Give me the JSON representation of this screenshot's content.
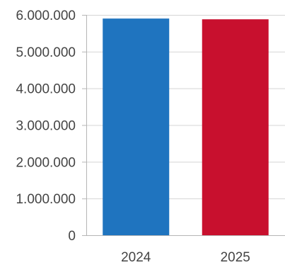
{
  "chart_data": {
    "type": "bar",
    "categories": [
      "2024",
      "2025"
    ],
    "values": [
      5900000,
      5880000
    ],
    "ylim": [
      0,
      6000000
    ],
    "yticks": [
      0,
      1000000,
      2000000,
      3000000,
      4000000,
      5000000,
      6000000
    ],
    "ytick_labels": [
      "0",
      "1.000.000",
      "2.000.000",
      "3.000.000",
      "4.000.000",
      "5.000.000",
      "6.000.000"
    ],
    "grid": true,
    "colors": [
      "#1f74bf",
      "#c8102e"
    ]
  }
}
